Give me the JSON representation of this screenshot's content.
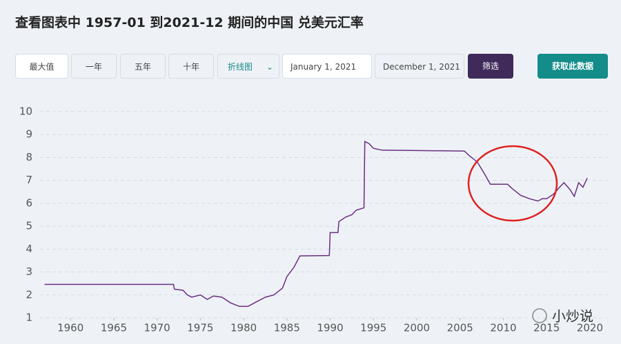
{
  "header": {
    "title": "查看图表中 1957-01 到2021-12 期间的中国 兑美元汇率"
  },
  "controls": {
    "ranges": [
      "最大值",
      "一年",
      "五年",
      "十年"
    ],
    "chart_select": "折线图",
    "start_date": "January 1, 2021",
    "end_date": "December 1, 2021",
    "filter": "筛选",
    "download": "获取此数据"
  },
  "watermark": "小炒说",
  "chart_data": {
    "type": "line",
    "color": "#6b2c82",
    "grid": true,
    "x": [
      1957,
      1971.9,
      1972,
      1973,
      1973.5,
      1974,
      1975,
      1975.8,
      1976.5,
      1977.5,
      1978.5,
      1979.5,
      1980.5,
      1981.5,
      1982.5,
      1983.5,
      1984.5,
      1985,
      1985.8,
      1986.5,
      1989.9,
      1990,
      1990.9,
      1991,
      1991.8,
      1992.5,
      1993,
      1993.9,
      1994,
      1994.5,
      1995,
      1996,
      2005.5,
      2006,
      2007,
      2007.8,
      2008.5,
      2010.5,
      2011,
      2012,
      2013,
      2014,
      2014.5,
      2015,
      2015.8,
      2016.5,
      2017,
      2017.7,
      2018.2,
      2018.7,
      2019.2,
      2019.7
    ],
    "values": [
      2.46,
      2.46,
      2.25,
      2.2,
      2.0,
      1.9,
      2.0,
      1.8,
      1.95,
      1.9,
      1.65,
      1.5,
      1.5,
      1.7,
      1.9,
      2.0,
      2.3,
      2.8,
      3.2,
      3.7,
      3.72,
      4.72,
      4.72,
      5.2,
      5.4,
      5.5,
      5.7,
      5.8,
      8.7,
      8.6,
      8.4,
      8.32,
      8.28,
      8.1,
      7.8,
      7.3,
      6.83,
      6.83,
      6.65,
      6.35,
      6.2,
      6.1,
      6.2,
      6.2,
      6.4,
      6.7,
      6.9,
      6.6,
      6.3,
      6.9,
      6.7,
      7.1
    ],
    "xlim": [
      1956,
      2022
    ],
    "xticks": [
      1960,
      1965,
      1970,
      1975,
      1980,
      1985,
      1990,
      1995,
      2000,
      2005,
      2010,
      2015,
      2020
    ],
    "ylim": [
      1,
      10
    ],
    "yticks": [
      1,
      2,
      3,
      4,
      5,
      6,
      7,
      8,
      9,
      10
    ]
  }
}
